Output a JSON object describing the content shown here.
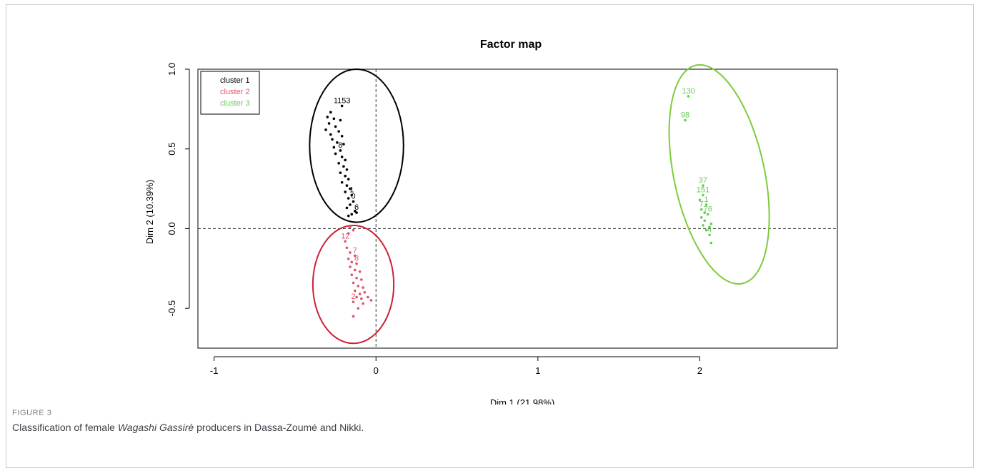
{
  "figure": {
    "label": "FIGURE 3",
    "caption_before": "Classification of female ",
    "caption_italic": "Wagashi Gassirè",
    "caption_after": " producers in Dassa-Zoumé and Nikki."
  },
  "chart_data": {
    "type": "scatter",
    "title": "Factor map",
    "xlabel": "Dim 1 (21.98%)",
    "ylabel": "Dim 2 (10.39%)",
    "xlim": [
      -1.1,
      2.85
    ],
    "ylim": [
      -0.75,
      1.0
    ],
    "xticks": [
      -1,
      0,
      1,
      2
    ],
    "xtick_labels": [
      "-1",
      "0",
      "1",
      "2"
    ],
    "yticks": [
      -0.5,
      0.0,
      0.5,
      1.0
    ],
    "ytick_labels": [
      "-0.5",
      "0.0",
      "0.5",
      "1.0"
    ],
    "reference_lines": {
      "x": 0,
      "y": 0,
      "style": "dashed"
    },
    "legend": {
      "placement": "top-left",
      "entries": [
        {
          "name": "cluster 1",
          "color": "#000000"
        },
        {
          "name": "cluster 2",
          "color": "#df536b"
        },
        {
          "name": "cluster 3",
          "color": "#61d04f"
        }
      ]
    },
    "series": [
      {
        "name": "cluster 1",
        "color": "#000000",
        "ellipse": {
          "center": [
            -0.12,
            0.52
          ],
          "radius_x": 0.29,
          "radius_y": 0.48,
          "angle_deg": 0
        },
        "points": [
          {
            "x": -0.21,
            "y": 0.77,
            "label": "1153"
          },
          {
            "x": -0.28,
            "y": 0.73,
            "label": ""
          },
          {
            "x": -0.3,
            "y": 0.7,
            "label": ""
          },
          {
            "x": -0.26,
            "y": 0.69,
            "label": ""
          },
          {
            "x": -0.22,
            "y": 0.68,
            "label": ""
          },
          {
            "x": -0.29,
            "y": 0.66,
            "label": ""
          },
          {
            "x": -0.25,
            "y": 0.64,
            "label": ""
          },
          {
            "x": -0.31,
            "y": 0.62,
            "label": ""
          },
          {
            "x": -0.23,
            "y": 0.61,
            "label": ""
          },
          {
            "x": -0.28,
            "y": 0.59,
            "label": ""
          },
          {
            "x": -0.21,
            "y": 0.58,
            "label": ""
          },
          {
            "x": -0.27,
            "y": 0.56,
            "label": ""
          },
          {
            "x": -0.24,
            "y": 0.54,
            "label": ""
          },
          {
            "x": -0.2,
            "y": 0.53,
            "label": ""
          },
          {
            "x": -0.26,
            "y": 0.51,
            "label": ""
          },
          {
            "x": -0.22,
            "y": 0.49,
            "label": "8"
          },
          {
            "x": -0.25,
            "y": 0.47,
            "label": ""
          },
          {
            "x": -0.21,
            "y": 0.45,
            "label": ""
          },
          {
            "x": -0.19,
            "y": 0.43,
            "label": ""
          },
          {
            "x": -0.23,
            "y": 0.41,
            "label": ""
          },
          {
            "x": -0.2,
            "y": 0.39,
            "label": ""
          },
          {
            "x": -0.18,
            "y": 0.37,
            "label": ""
          },
          {
            "x": -0.22,
            "y": 0.35,
            "label": ""
          },
          {
            "x": -0.19,
            "y": 0.33,
            "label": ""
          },
          {
            "x": -0.17,
            "y": 0.31,
            "label": ""
          },
          {
            "x": -0.21,
            "y": 0.29,
            "label": ""
          },
          {
            "x": -0.18,
            "y": 0.27,
            "label": ""
          },
          {
            "x": -0.16,
            "y": 0.25,
            "label": ""
          },
          {
            "x": -0.19,
            "y": 0.23,
            "label": ""
          },
          {
            "x": -0.15,
            "y": 0.21,
            "label": "1"
          },
          {
            "x": -0.17,
            "y": 0.19,
            "label": ""
          },
          {
            "x": -0.14,
            "y": 0.17,
            "label": "0"
          },
          {
            "x": -0.16,
            "y": 0.15,
            "label": ""
          },
          {
            "x": -0.18,
            "y": 0.13,
            "label": ""
          },
          {
            "x": -0.13,
            "y": 0.11,
            "label": ""
          },
          {
            "x": -0.15,
            "y": 0.09,
            "label": ""
          },
          {
            "x": -0.12,
            "y": 0.1,
            "label": "6"
          },
          {
            "x": -0.17,
            "y": 0.08,
            "label": ""
          }
        ]
      },
      {
        "name": "cluster 2",
        "color": "#df536b",
        "ellipse": {
          "center": [
            -0.14,
            -0.35
          ],
          "radius_x": 0.25,
          "radius_y": 0.37,
          "angle_deg": 0
        },
        "points": [
          {
            "x": -0.16,
            "y": 0.01,
            "label": ""
          },
          {
            "x": -0.14,
            "y": -0.01,
            "label": ""
          },
          {
            "x": -0.17,
            "y": -0.03,
            "label": ""
          },
          {
            "x": -0.19,
            "y": -0.08,
            "label": "12"
          },
          {
            "x": -0.18,
            "y": -0.12,
            "label": ""
          },
          {
            "x": -0.16,
            "y": -0.15,
            "label": ""
          },
          {
            "x": -0.13,
            "y": -0.17,
            "label": "7"
          },
          {
            "x": -0.17,
            "y": -0.19,
            "label": ""
          },
          {
            "x": -0.15,
            "y": -0.21,
            "label": ""
          },
          {
            "x": -0.12,
            "y": -0.22,
            "label": "8"
          },
          {
            "x": -0.16,
            "y": -0.24,
            "label": ""
          },
          {
            "x": -0.13,
            "y": -0.26,
            "label": ""
          },
          {
            "x": -0.1,
            "y": -0.27,
            "label": ""
          },
          {
            "x": -0.15,
            "y": -0.29,
            "label": ""
          },
          {
            "x": -0.12,
            "y": -0.31,
            "label": ""
          },
          {
            "x": -0.09,
            "y": -0.32,
            "label": ""
          },
          {
            "x": -0.14,
            "y": -0.34,
            "label": ""
          },
          {
            "x": -0.11,
            "y": -0.36,
            "label": ""
          },
          {
            "x": -0.08,
            "y": -0.37,
            "label": ""
          },
          {
            "x": -0.13,
            "y": -0.39,
            "label": ""
          },
          {
            "x": -0.1,
            "y": -0.41,
            "label": ""
          },
          {
            "x": -0.07,
            "y": -0.4,
            "label": ""
          },
          {
            "x": -0.12,
            "y": -0.43,
            "label": ""
          },
          {
            "x": -0.09,
            "y": -0.44,
            "label": ""
          },
          {
            "x": -0.05,
            "y": -0.43,
            "label": ""
          },
          {
            "x": -0.14,
            "y": -0.46,
            "label": "2"
          },
          {
            "x": -0.08,
            "y": -0.47,
            "label": ""
          },
          {
            "x": -0.03,
            "y": -0.45,
            "label": ""
          },
          {
            "x": -0.11,
            "y": -0.5,
            "label": ""
          },
          {
            "x": -0.14,
            "y": -0.55,
            "label": ""
          }
        ]
      },
      {
        "name": "cluster 3",
        "color": "#61d04f",
        "ellipse": {
          "center": [
            2.12,
            0.34
          ],
          "radius_x": 0.28,
          "radius_y": 0.7,
          "angle_deg": -12
        },
        "points": [
          {
            "x": 1.93,
            "y": 0.83,
            "label": "130"
          },
          {
            "x": 1.91,
            "y": 0.68,
            "label": "98"
          },
          {
            "x": 2.02,
            "y": 0.27,
            "label": "37"
          },
          {
            "x": 2.02,
            "y": 0.21,
            "label": "151"
          },
          {
            "x": 2.0,
            "y": 0.18,
            "label": ""
          },
          {
            "x": 2.04,
            "y": 0.15,
            "label": "1"
          },
          {
            "x": 2.01,
            "y": 0.12,
            "label": "7"
          },
          {
            "x": 2.03,
            "y": 0.1,
            "label": ""
          },
          {
            "x": 2.05,
            "y": 0.09,
            "label": "76"
          },
          {
            "x": 2.01,
            "y": 0.07,
            "label": ""
          },
          {
            "x": 2.03,
            "y": 0.05,
            "label": ""
          },
          {
            "x": 2.07,
            "y": 0.03,
            "label": ""
          },
          {
            "x": 2.02,
            "y": 0.02,
            "label": ""
          },
          {
            "x": 2.06,
            "y": 0.01,
            "label": ""
          },
          {
            "x": 2.04,
            "y": -0.01,
            "label": ""
          },
          {
            "x": 2.06,
            "y": -0.04,
            "label": "4"
          },
          {
            "x": 2.07,
            "y": -0.09,
            "label": ""
          }
        ]
      }
    ]
  }
}
